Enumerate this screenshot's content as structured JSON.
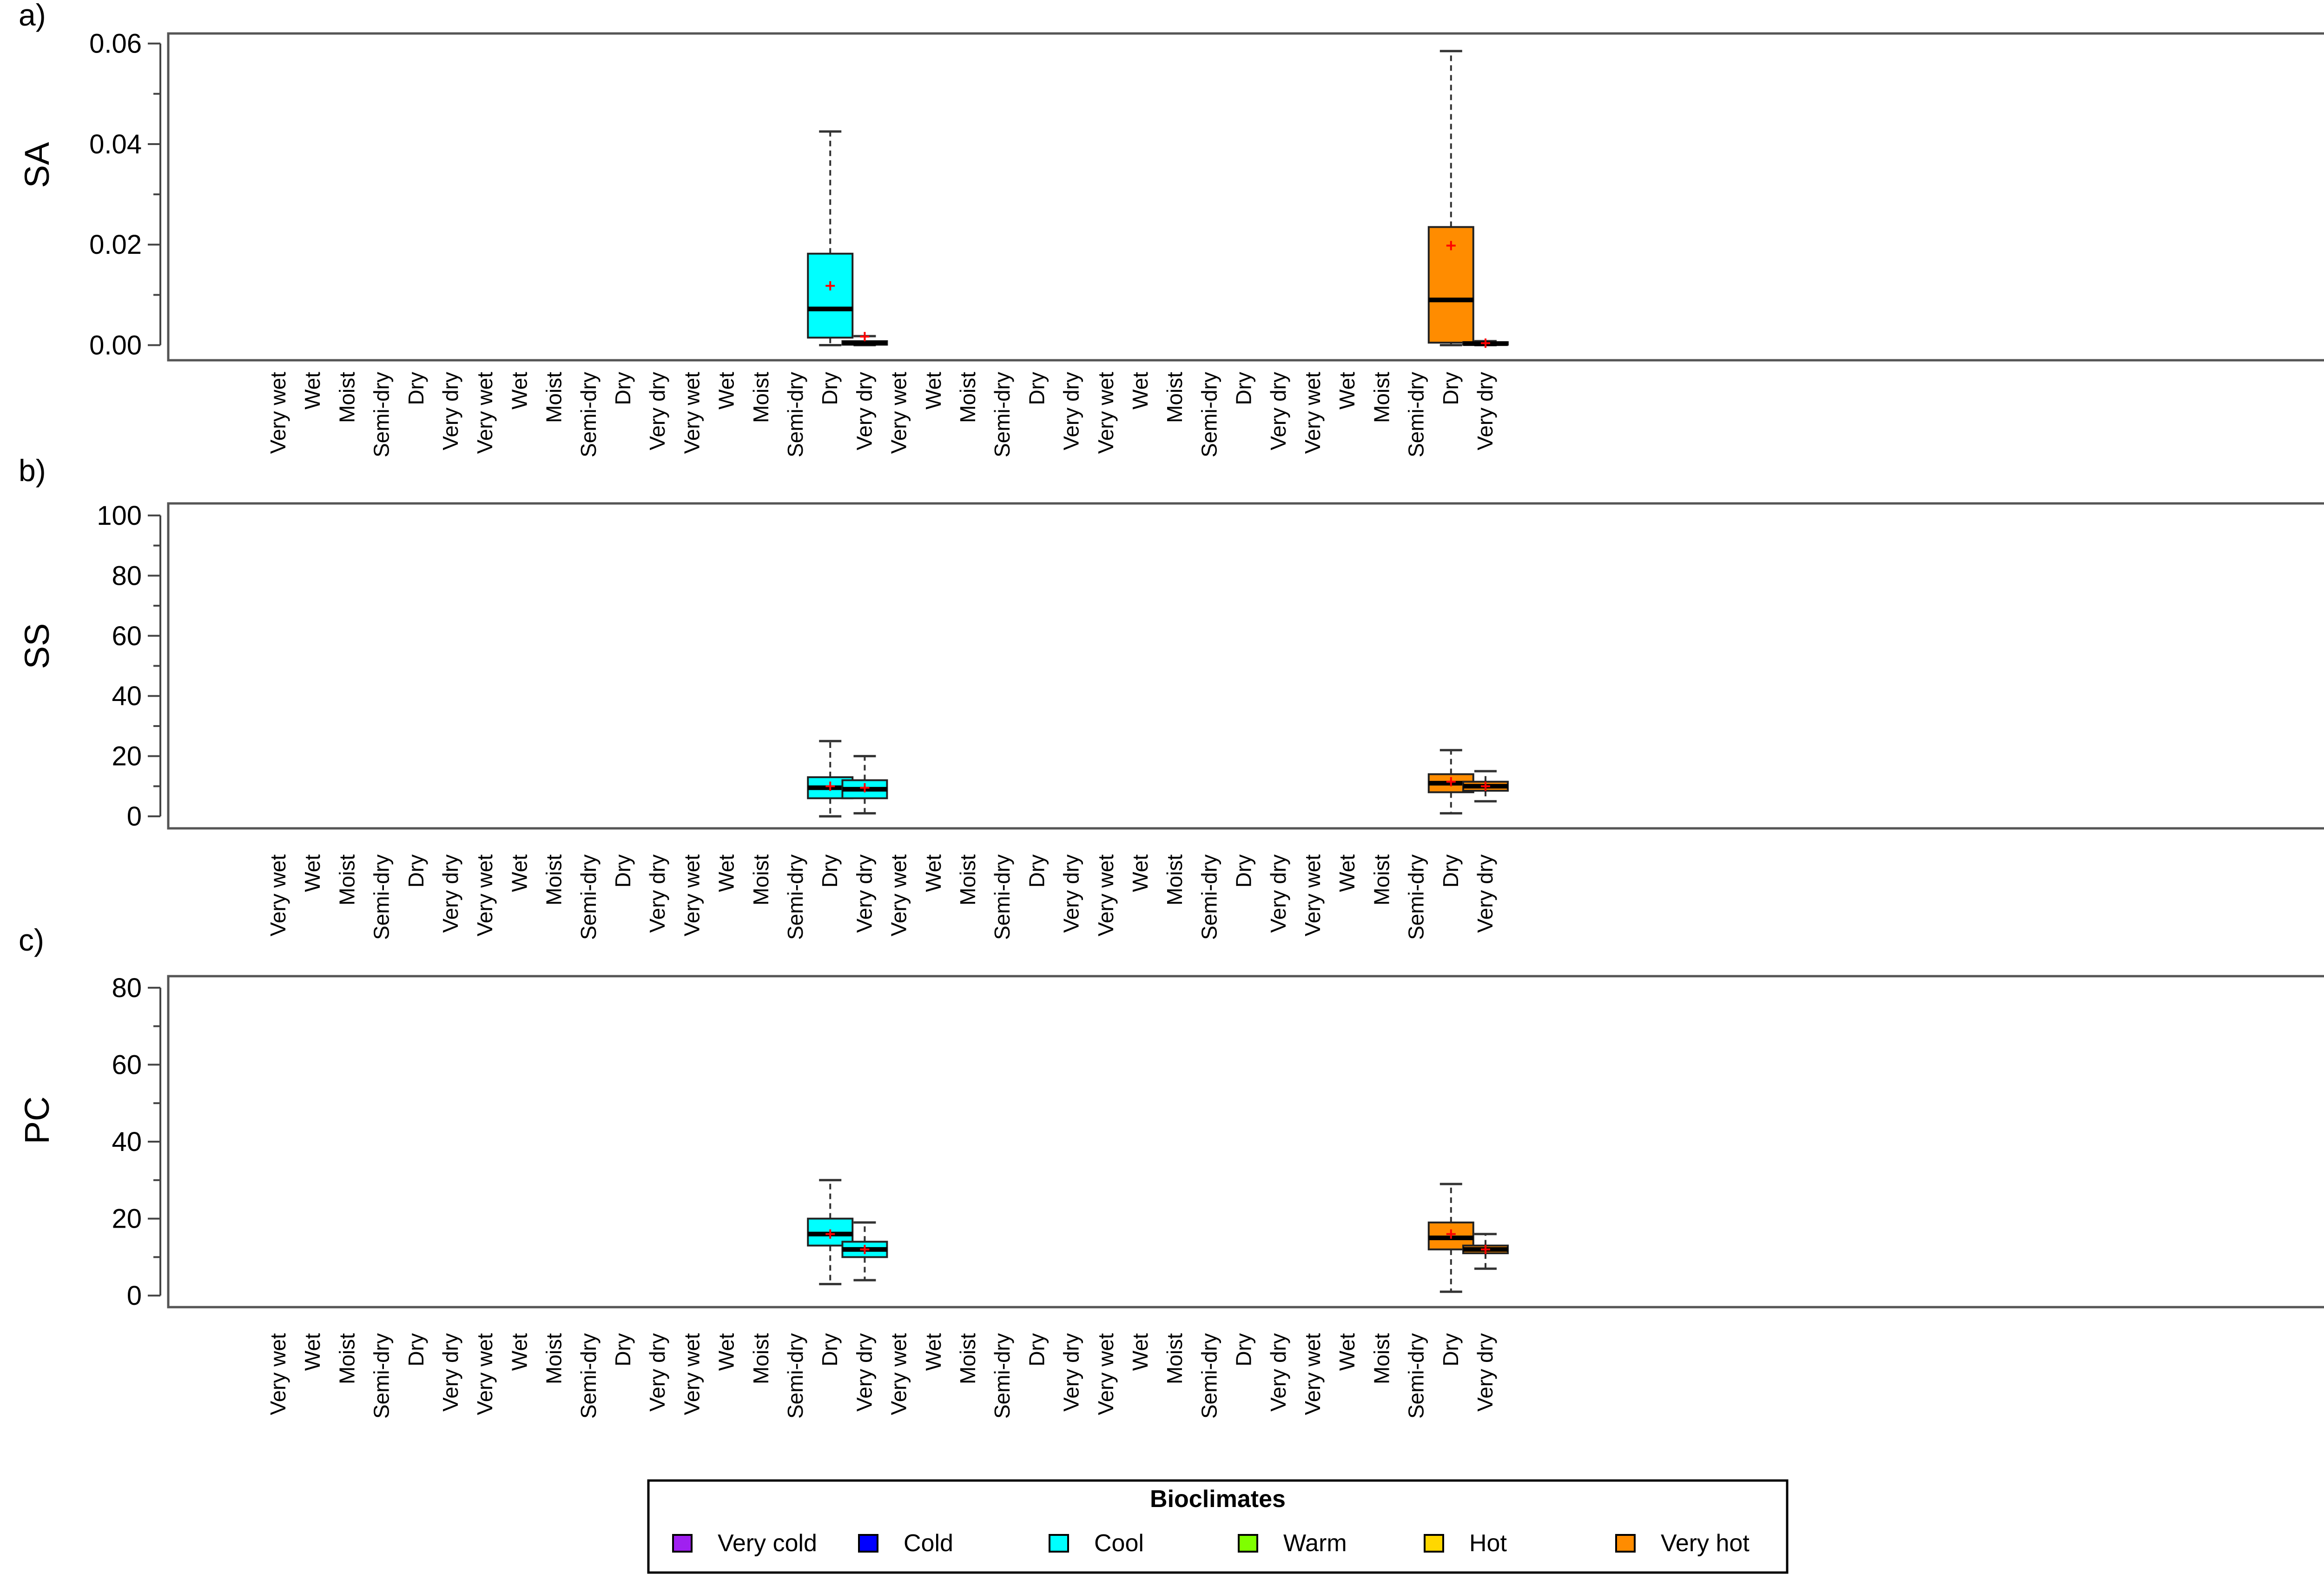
{
  "categories": [
    "Very wet",
    "Wet",
    "Moist",
    "Semi-dry",
    "Dry",
    "Very dry",
    "Very wet",
    "Wet",
    "Moist",
    "Semi-dry",
    "Dry",
    "Very dry",
    "Very wet",
    "Wet",
    "Moist",
    "Semi-dry",
    "Dry",
    "Very dry",
    "Very wet",
    "Wet",
    "Moist",
    "Semi-dry",
    "Dry",
    "Very dry",
    "Very wet",
    "Wet",
    "Moist",
    "Semi-dry",
    "Dry",
    "Very dry",
    "Very wet",
    "Wet",
    "Moist",
    "Semi-dry",
    "Dry",
    "Very dry"
  ],
  "colors": {
    "Very cold": "#a020f0",
    "Cold": "#0000ff",
    "Cool": "#00ffff",
    "Warm": "#7fff00",
    "Hot": "#ffd700",
    "Very hot": "#ff8c00",
    "mean_marker": "#ff0000"
  },
  "legend": {
    "title": "Bioclimates",
    "items": [
      "Very cold",
      "Cold",
      "Cool",
      "Warm",
      "Hot",
      "Very hot"
    ]
  },
  "chart_data": [
    {
      "type": "box",
      "panel_label": "a)",
      "ylabel": "SA",
      "ylim": [
        -0.003,
        0.062
      ],
      "yticks": [
        0,
        0.02,
        0.04,
        0.06
      ],
      "ytick_labels": [
        "0.00",
        "0.02",
        "0.04",
        "0.06"
      ],
      "boxes": [
        {
          "category_index": 16,
          "bioclimate": "Cool",
          "whisker_low": 0.0,
          "q1": 0.0015,
          "median": 0.0072,
          "q3": 0.0182,
          "whisker_high": 0.0425,
          "mean": 0.0118
        },
        {
          "category_index": 17,
          "bioclimate": "Cool",
          "whisker_low": 0.0,
          "q1": 0.0001,
          "median": 0.0004,
          "q3": 0.0008,
          "whisker_high": 0.0018,
          "mean": 0.0017
        },
        {
          "category_index": 34,
          "bioclimate": "Very hot",
          "whisker_low": 0.0,
          "q1": 0.0005,
          "median": 0.009,
          "q3": 0.0235,
          "whisker_high": 0.0585,
          "mean": 0.0198
        },
        {
          "category_index": 35,
          "bioclimate": "Very hot",
          "whisker_low": 0.0,
          "q1": 0.0001,
          "median": 0.0003,
          "q3": 0.0006,
          "whisker_high": 0.0008,
          "mean": 0.0004
        }
      ]
    },
    {
      "type": "box",
      "panel_label": "b)",
      "ylabel": "SS",
      "ylim": [
        -4,
        104
      ],
      "yticks": [
        0,
        20,
        40,
        60,
        80,
        100
      ],
      "ytick_labels": [
        "0",
        "20",
        "40",
        "60",
        "80",
        "100"
      ],
      "boxes": [
        {
          "category_index": 16,
          "bioclimate": "Cool",
          "whisker_low": 0,
          "q1": 6,
          "median": 9.5,
          "q3": 13,
          "whisker_high": 25,
          "mean": 10
        },
        {
          "category_index": 17,
          "bioclimate": "Cool",
          "whisker_low": 1,
          "q1": 6,
          "median": 9,
          "q3": 12,
          "whisker_high": 20,
          "mean": 9.5
        },
        {
          "category_index": 34,
          "bioclimate": "Very hot",
          "whisker_low": 1,
          "q1": 8,
          "median": 11,
          "q3": 14,
          "whisker_high": 22,
          "mean": 11.5
        },
        {
          "category_index": 35,
          "bioclimate": "Very hot",
          "whisker_low": 5,
          "q1": 8.5,
          "median": 10,
          "q3": 11.5,
          "whisker_high": 15,
          "mean": 10
        }
      ]
    },
    {
      "type": "box",
      "panel_label": "c)",
      "ylabel": "PC",
      "ylim": [
        -3,
        83
      ],
      "yticks": [
        0,
        20,
        40,
        60,
        80
      ],
      "ytick_labels": [
        "0",
        "20",
        "40",
        "60",
        "80"
      ],
      "boxes": [
        {
          "category_index": 16,
          "bioclimate": "Cool",
          "whisker_low": 3,
          "q1": 13,
          "median": 16,
          "q3": 20,
          "whisker_high": 30,
          "mean": 16
        },
        {
          "category_index": 17,
          "bioclimate": "Cool",
          "whisker_low": 4,
          "q1": 10,
          "median": 12,
          "q3": 14,
          "whisker_high": 19,
          "mean": 12
        },
        {
          "category_index": 34,
          "bioclimate": "Very hot",
          "whisker_low": 1,
          "q1": 12,
          "median": 15,
          "q3": 19,
          "whisker_high": 29,
          "mean": 16
        },
        {
          "category_index": 35,
          "bioclimate": "Very hot",
          "whisker_low": 7,
          "q1": 11,
          "median": 12,
          "q3": 13,
          "whisker_high": 16,
          "mean": 12
        }
      ]
    }
  ]
}
